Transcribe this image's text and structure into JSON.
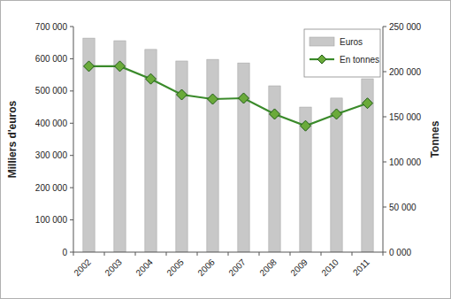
{
  "chart_data": {
    "type": "bar",
    "categories": [
      "2002",
      "2003",
      "2004",
      "2005",
      "2006",
      "2007",
      "2008",
      "2009",
      "2010",
      "2011"
    ],
    "series": [
      {
        "name": "Euros",
        "type": "bar",
        "color": "#c8c8c8",
        "values": [
          664000,
          656000,
          629000,
          593000,
          598000,
          587000,
          516000,
          450000,
          478000,
          538000
        ]
      },
      {
        "name": "En tonnes",
        "type": "line",
        "axis": "y2",
        "color": "#3a8a2a",
        "marker": "diamond",
        "values": [
          206000,
          206000,
          192000,
          174500,
          169600,
          170600,
          153000,
          140000,
          153000,
          165000
        ]
      }
    ],
    "ylabel": "Milliers d'euros",
    "y2label": "Tonnes",
    "ylim": [
      0,
      700000
    ],
    "yticks": [
      0,
      {
        "value": 100000,
        "label": "100 000"
      },
      {
        "value": 200000,
        "label": "200 000"
      },
      {
        "value": 300000,
        "label": "300 000"
      },
      {
        "value": 400000,
        "label": "400 000"
      },
      {
        "value": 500000,
        "label": "500 000"
      },
      {
        "value": 600000,
        "label": "600 000"
      },
      {
        "value": 700000,
        "label": "700 000"
      }
    ],
    "y2lim": [
      0,
      250000
    ],
    "y2ticks": [
      {
        "value": 0,
        "label": "0 000"
      },
      {
        "value": 50000,
        "label": "50 000"
      },
      {
        "value": 100000,
        "label": "100 000"
      },
      {
        "value": 150000,
        "label": "150 000"
      },
      {
        "value": 200000,
        "label": "200 000"
      },
      {
        "value": 250000,
        "label": "250 000"
      }
    ],
    "grid": false,
    "legend": "upper right"
  }
}
